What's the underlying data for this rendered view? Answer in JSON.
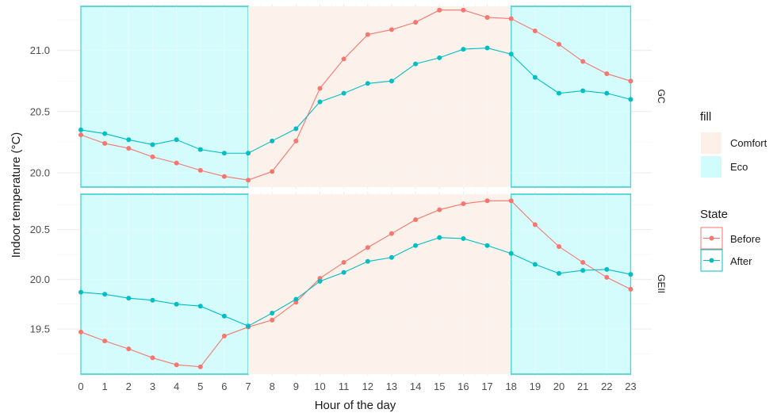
{
  "chart_data": {
    "type": "line",
    "xlabel": "Hour of the day",
    "ylabel": "Indoor temperature (°C)",
    "x": [
      0,
      1,
      2,
      3,
      4,
      5,
      6,
      7,
      8,
      9,
      10,
      11,
      12,
      13,
      14,
      15,
      16,
      17,
      18,
      19,
      20,
      21,
      22,
      23
    ],
    "x_ticks": [
      "0",
      "1",
      "2",
      "3",
      "4",
      "5",
      "6",
      "7",
      "8",
      "9",
      "10",
      "11",
      "12",
      "13",
      "14",
      "15",
      "16",
      "17",
      "18",
      "19",
      "20",
      "21",
      "22",
      "23"
    ],
    "background_periods": [
      {
        "fill": "Eco",
        "from": 0,
        "to": 7
      },
      {
        "fill": "Comfort",
        "from": 7,
        "to": 18
      },
      {
        "fill": "Eco",
        "from": 18,
        "to": 23
      }
    ],
    "panels": [
      {
        "strip": "GC",
        "ylim": [
          19.87,
          21.38
        ],
        "y_ticks": [
          20.0,
          20.5,
          21.0
        ],
        "y_tick_labels": [
          "20.0",
          "20.5",
          "21.0"
        ],
        "series": [
          {
            "name": "Before",
            "values": [
              20.31,
              20.24,
              20.2,
              20.13,
              20.08,
              20.02,
              19.97,
              19.94,
              20.01,
              20.26,
              20.69,
              20.93,
              21.13,
              21.17,
              21.23,
              21.33,
              21.33,
              21.27,
              21.26,
              21.16,
              21.05,
              20.91,
              20.81,
              20.75
            ]
          },
          {
            "name": "After",
            "values": [
              20.35,
              20.32,
              20.27,
              20.23,
              20.27,
              20.19,
              20.16,
              20.16,
              20.26,
              20.36,
              20.58,
              20.65,
              20.73,
              20.75,
              20.89,
              20.94,
              21.01,
              21.02,
              20.97,
              20.78,
              20.65,
              20.67,
              20.65,
              20.6
            ]
          }
        ]
      },
      {
        "strip": "GEII",
        "ylim": [
          19.03,
          20.88
        ],
        "y_ticks": [
          19.5,
          20.0,
          20.5
        ],
        "y_tick_labels": [
          "19.5",
          "20.0",
          "20.5"
        ],
        "series": [
          {
            "name": "Before",
            "values": [
              19.47,
              19.38,
              19.3,
              19.21,
              19.14,
              19.12,
              19.43,
              19.52,
              19.59,
              19.77,
              20.01,
              20.17,
              20.32,
              20.46,
              20.6,
              20.7,
              20.76,
              20.79,
              20.79,
              20.55,
              20.33,
              20.17,
              20.02,
              19.9
            ]
          },
          {
            "name": "After",
            "values": [
              19.87,
              19.85,
              19.81,
              19.79,
              19.75,
              19.73,
              19.63,
              19.53,
              19.66,
              19.8,
              19.98,
              20.07,
              20.18,
              20.22,
              20.34,
              20.42,
              20.41,
              20.34,
              20.26,
              20.15,
              20.06,
              20.09,
              20.1,
              20.05
            ]
          }
        ]
      }
    ],
    "legends": [
      {
        "title": "fill",
        "entries": [
          {
            "label": "Comfort",
            "color": "#fdf0e8"
          },
          {
            "label": "Eco",
            "color": "#d0fcfc"
          }
        ]
      },
      {
        "title": "State",
        "entries": [
          {
            "label": "Before",
            "color": "#f8766d"
          },
          {
            "label": "After",
            "color": "#00bfc4"
          }
        ]
      }
    ],
    "colors": {
      "Before": "#f8766d",
      "After": "#00bfc4",
      "Comfort_fill": "#fdf0e8",
      "Eco_fill": "#d0fcfc",
      "Eco_border": "#18c4c4",
      "grid_major": "#ebebeb",
      "grid_minor": "#f5f5f5"
    },
    "grid": true,
    "legend_position": "right"
  }
}
